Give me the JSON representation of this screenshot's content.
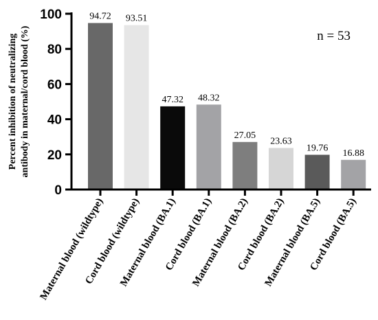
{
  "chart_data": {
    "type": "bar",
    "categories": [
      "Maternal blood (wildtype)",
      "Cord blood (wildtype)",
      "Maternal blood (BA.1)",
      "Cord blood (BA.1)",
      "Maternal blood (BA.2)",
      "Cord blood (BA.2)",
      "Maternal blood (BA.5)",
      "Cord blood (BA.5)"
    ],
    "values": [
      94.72,
      93.51,
      47.32,
      48.32,
      27.05,
      23.63,
      19.76,
      16.88
    ],
    "value_labels": [
      "94.72",
      "93.51",
      "47.32",
      "48.32",
      "27.05",
      "23.63",
      "19.76",
      "16.88"
    ],
    "colors": [
      "#686868",
      "#e6e6e6",
      "#0a0a0a",
      "#a3a3a6",
      "#7e7e7e",
      "#d6d6d6",
      "#5a5a5a",
      "#a3a3a6"
    ],
    "ylabel_lines": [
      "Percent inhibition of neutralizing",
      "antibody in maternal/cord blood (%)"
    ],
    "ylim": [
      0,
      100
    ],
    "yticks": [
      "0",
      "20",
      "40",
      "60",
      "80",
      "100"
    ],
    "annotation": "n = 53",
    "grid": false
  }
}
